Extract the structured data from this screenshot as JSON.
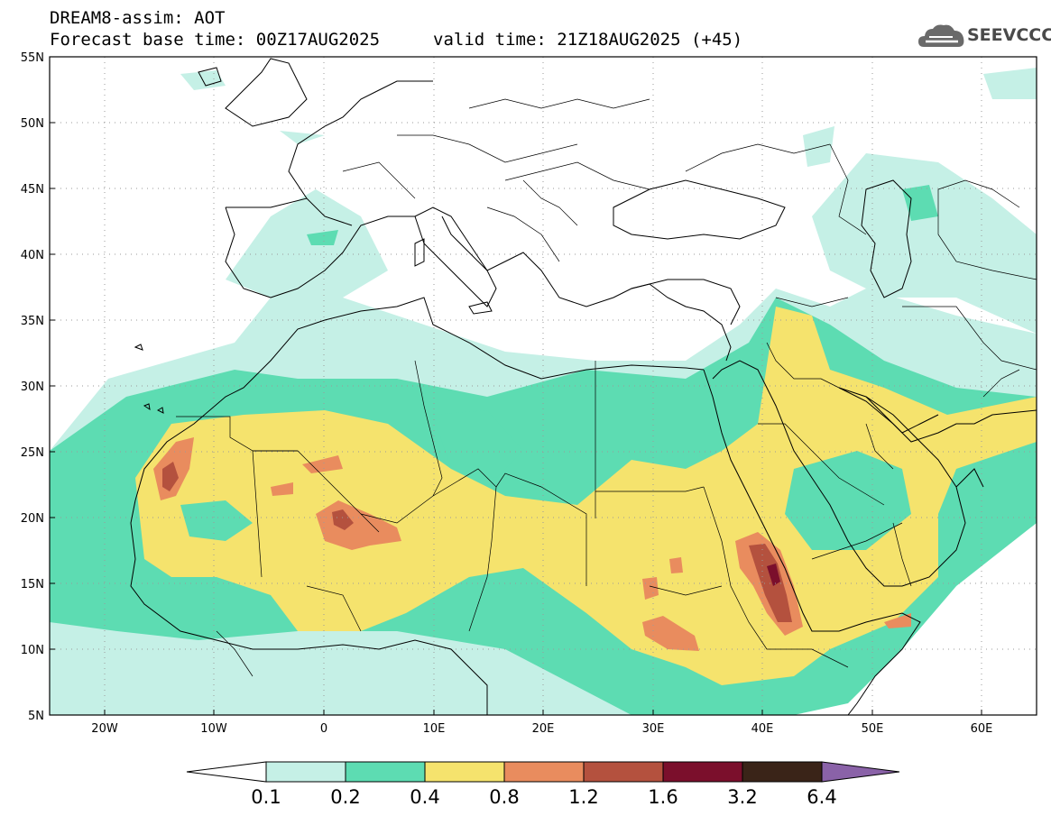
{
  "title": {
    "line1": "DREAM8-assim: AOT",
    "line2": "Forecast base time: 00Z17AUG2025",
    "valid": "valid time: 21Z18AUG2025 (+45)"
  },
  "logo": {
    "text": "SEEVCCC",
    "color": "#4a4a4a"
  },
  "axes": {
    "lat_labels": [
      "55N",
      "50N",
      "45N",
      "40N",
      "35N",
      "30N",
      "25N",
      "20N",
      "15N",
      "10N",
      "5N"
    ],
    "lon_labels": [
      "20W",
      "10W",
      "0",
      "10E",
      "20E",
      "30E",
      "40E",
      "50E",
      "60E"
    ],
    "lat_range": [
      5,
      55
    ],
    "lon_range": [
      -25,
      65
    ]
  },
  "colorbar": {
    "labels": [
      "0.1",
      "0.2",
      "0.4",
      "0.8",
      "1.2",
      "1.6",
      "3.2",
      "6.4"
    ],
    "colors": [
      "#c5f0e6",
      "#5ddcb2",
      "#f5e36d",
      "#e98c5e",
      "#b4513e",
      "#7b0f2c",
      "#3a2418",
      "#8a62a8"
    ]
  },
  "map_features": [
    "aot-field",
    "coastlines",
    "country-borders",
    "graticule"
  ]
}
